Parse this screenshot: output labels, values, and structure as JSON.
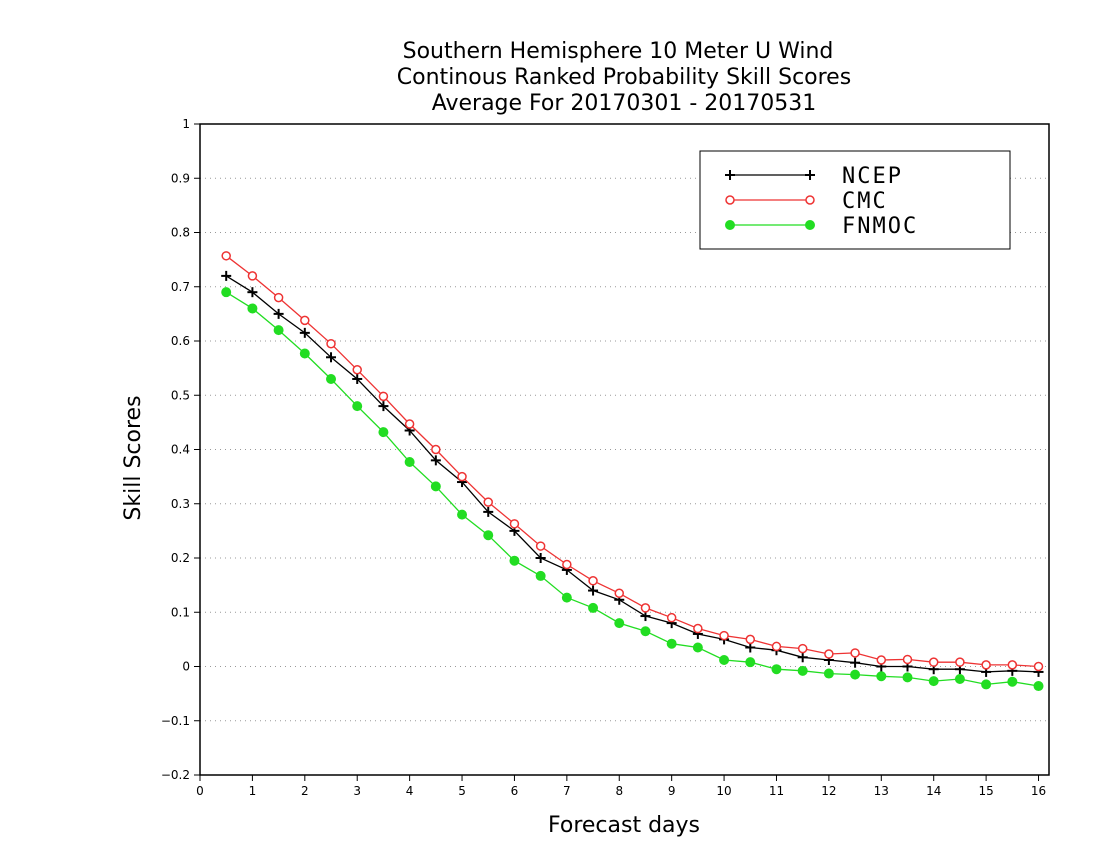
{
  "chart_data": {
    "type": "line",
    "title": [
      "Southern Hemisphere 10 Meter U Wind",
      "Continous Ranked Probability Skill Scores",
      "Average For 20170301 - 20170531"
    ],
    "xlabel": "Forecast days",
    "ylabel": "Skill Scores",
    "xlim": [
      0,
      16.2
    ],
    "ylim": [
      -0.2,
      1
    ],
    "x_ticks": [
      "0",
      "1",
      "2",
      "3",
      "4",
      "5",
      "6",
      "7",
      "8",
      "9",
      "10",
      "11",
      "12",
      "13",
      "14",
      "15",
      "16"
    ],
    "y_ticks": [
      "−0.2",
      "−0.1",
      "0",
      "0.1",
      "0.2",
      "0.3",
      "0.4",
      "0.5",
      "0.6",
      "0.7",
      "0.8",
      "0.9",
      "1"
    ],
    "grid": "horizontal dotted",
    "legend_position": "top-right",
    "x": [
      0.5,
      1,
      1.5,
      2,
      2.5,
      3,
      3.5,
      4,
      4.5,
      5,
      5.5,
      6,
      6.5,
      7,
      7.5,
      8,
      8.5,
      9,
      9.5,
      10,
      10.5,
      11,
      11.5,
      12,
      12.5,
      13,
      13.5,
      14,
      14.5,
      15,
      15.5,
      16
    ],
    "series": [
      {
        "name": "NCEP",
        "color": "#000000",
        "marker": "plus",
        "values": [
          0.72,
          0.69,
          0.65,
          0.615,
          0.57,
          0.53,
          0.48,
          0.435,
          0.38,
          0.34,
          0.285,
          0.25,
          0.2,
          0.178,
          0.14,
          0.123,
          0.093,
          0.08,
          0.06,
          0.05,
          0.035,
          0.03,
          0.017,
          0.012,
          0.007,
          0.0,
          0.0,
          -0.005,
          -0.005,
          -0.01,
          -0.008,
          -0.01
        ]
      },
      {
        "name": "CMC",
        "color": "#ee3333",
        "marker": "open-circle",
        "values": [
          0.757,
          0.72,
          0.68,
          0.638,
          0.595,
          0.547,
          0.498,
          0.447,
          0.4,
          0.35,
          0.303,
          0.263,
          0.222,
          0.188,
          0.158,
          0.135,
          0.108,
          0.09,
          0.07,
          0.057,
          0.05,
          0.037,
          0.033,
          0.023,
          0.025,
          0.012,
          0.013,
          0.008,
          0.008,
          0.003,
          0.003,
          0.0
        ]
      },
      {
        "name": "FNMOC",
        "color": "#22dd22",
        "marker": "filled-circle",
        "values": [
          0.69,
          0.66,
          0.62,
          0.577,
          0.53,
          0.48,
          0.432,
          0.377,
          0.332,
          0.28,
          0.242,
          0.195,
          0.167,
          0.127,
          0.108,
          0.08,
          0.065,
          0.042,
          0.035,
          0.012,
          0.008,
          -0.005,
          -0.008,
          -0.013,
          -0.015,
          -0.018,
          -0.02,
          -0.027,
          -0.023,
          -0.033,
          -0.028,
          -0.036
        ]
      }
    ]
  }
}
